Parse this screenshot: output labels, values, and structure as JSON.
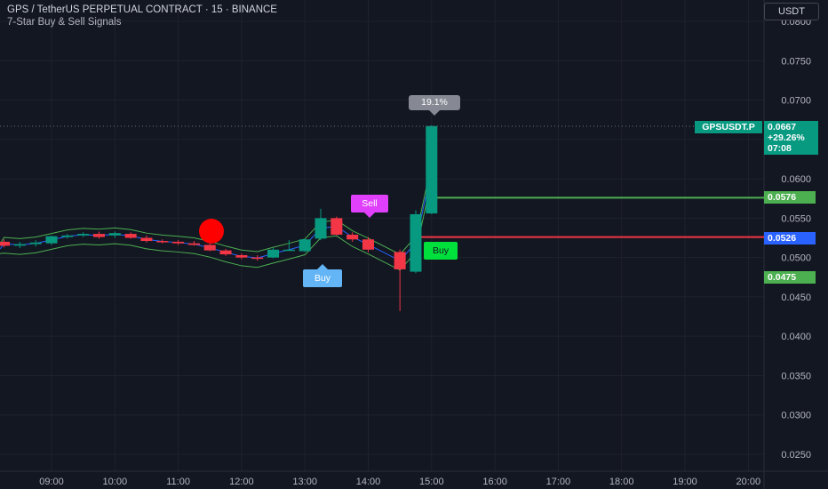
{
  "header": {
    "title": "GPS / TetherUS PERPETUAL CONTRACT · 15 · BINANCE",
    "subtitle": "7-Star Buy & Sell Signals"
  },
  "currency_button": "USDT",
  "price_tags": {
    "symbol": "GPSUSDT.P",
    "last": "0.0667",
    "change": "+29.26%",
    "countdown": "07:08",
    "green_level": "0.0576",
    "red_level": "0.0526",
    "green_low_level": "0.0475"
  },
  "signals": {
    "sell": "Sell",
    "buy_blue": "Buy",
    "buy_green": "Buy",
    "pct": "19.1%"
  },
  "colors": {
    "background": "#131722",
    "up": "#089981",
    "down": "#f23645",
    "accent_green": "#4caf50",
    "accent_red": "#f23645",
    "price_blue": "#2962ff"
  },
  "chart_data": {
    "type": "candlestick",
    "x_ticks": [
      "09:00",
      "10:00",
      "11:00",
      "12:00",
      "13:00",
      "14:00",
      "15:00",
      "16:00",
      "17:00",
      "18:00",
      "19:00",
      "20:00"
    ],
    "y_ticks": [
      "0.0250",
      "0.0300",
      "0.0350",
      "0.0400",
      "0.0450",
      "0.0500",
      "0.0550",
      "0.0600",
      "0.0650",
      "0.0700",
      "0.0750",
      "0.0800"
    ],
    "ylim": [
      0.0215,
      0.0812
    ],
    "candles": [
      {
        "t": "08:15",
        "o": 0.052,
        "h": 0.0523,
        "l": 0.0513,
        "c": 0.0515
      },
      {
        "t": "08:30",
        "o": 0.0515,
        "h": 0.052,
        "l": 0.0512,
        "c": 0.0517
      },
      {
        "t": "08:45",
        "o": 0.0517,
        "h": 0.0522,
        "l": 0.0514,
        "c": 0.0519
      },
      {
        "t": "09:00",
        "o": 0.0518,
        "h": 0.0528,
        "l": 0.0516,
        "c": 0.0527
      },
      {
        "t": "09:15",
        "o": 0.0526,
        "h": 0.053,
        "l": 0.0524,
        "c": 0.0528
      },
      {
        "t": "09:30",
        "o": 0.0528,
        "h": 0.0532,
        "l": 0.0526,
        "c": 0.053
      },
      {
        "t": "09:45",
        "o": 0.053,
        "h": 0.0533,
        "l": 0.0524,
        "c": 0.0526
      },
      {
        "t": "10:00",
        "o": 0.0528,
        "h": 0.0533,
        "l": 0.0525,
        "c": 0.0531
      },
      {
        "t": "10:15",
        "o": 0.053,
        "h": 0.0532,
        "l": 0.0524,
        "c": 0.0525
      },
      {
        "t": "10:30",
        "o": 0.0525,
        "h": 0.0528,
        "l": 0.0519,
        "c": 0.0521
      },
      {
        "t": "10:45",
        "o": 0.0521,
        "h": 0.0523,
        "l": 0.0518,
        "c": 0.052
      },
      {
        "t": "11:00",
        "o": 0.052,
        "h": 0.0522,
        "l": 0.0516,
        "c": 0.0518
      },
      {
        "t": "11:15",
        "o": 0.0518,
        "h": 0.0521,
        "l": 0.0515,
        "c": 0.0516
      },
      {
        "t": "11:30",
        "o": 0.0516,
        "h": 0.0518,
        "l": 0.0508,
        "c": 0.0509
      },
      {
        "t": "11:45",
        "o": 0.0509,
        "h": 0.0511,
        "l": 0.0502,
        "c": 0.0504
      },
      {
        "t": "12:00",
        "o": 0.0503,
        "h": 0.0505,
        "l": 0.0498,
        "c": 0.05
      },
      {
        "t": "12:15",
        "o": 0.05,
        "h": 0.0503,
        "l": 0.0496,
        "c": 0.0499
      },
      {
        "t": "12:30",
        "o": 0.05,
        "h": 0.0512,
        "l": 0.0499,
        "c": 0.051
      },
      {
        "t": "12:45",
        "o": 0.051,
        "h": 0.0522,
        "l": 0.0509,
        "c": 0.051
      },
      {
        "t": "13:00",
        "o": 0.0508,
        "h": 0.0524,
        "l": 0.0507,
        "c": 0.0523
      },
      {
        "t": "13:15",
        "o": 0.0524,
        "h": 0.0562,
        "l": 0.0522,
        "c": 0.055
      },
      {
        "t": "13:30",
        "o": 0.055,
        "h": 0.0552,
        "l": 0.0528,
        "c": 0.0529
      },
      {
        "t": "13:45",
        "o": 0.0529,
        "h": 0.0532,
        "l": 0.052,
        "c": 0.0523
      },
      {
        "t": "14:00",
        "o": 0.0523,
        "h": 0.0526,
        "l": 0.0507,
        "c": 0.051
      },
      {
        "t": "14:30",
        "o": 0.0507,
        "h": 0.051,
        "l": 0.0432,
        "c": 0.0485
      },
      {
        "t": "14:45",
        "o": 0.0482,
        "h": 0.056,
        "l": 0.048,
        "c": 0.0555
      },
      {
        "t": "15:00",
        "o": 0.0556,
        "h": 0.0668,
        "l": 0.0555,
        "c": 0.0667
      }
    ],
    "levels": {
      "green": 0.0576,
      "red": 0.0526,
      "green_low": 0.0475
    }
  }
}
